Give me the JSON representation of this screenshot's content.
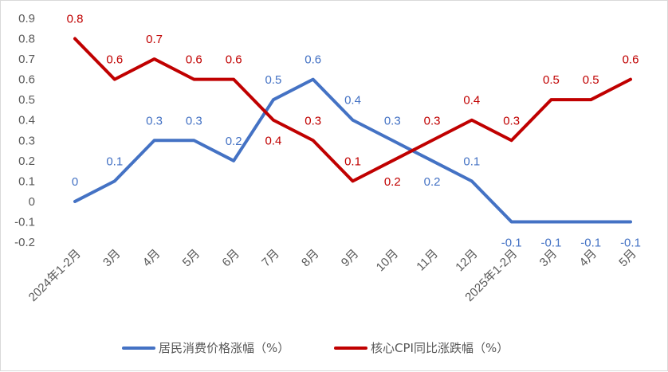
{
  "chart_data": {
    "type": "line",
    "title": "",
    "xlabel": "",
    "ylabel": "",
    "ylim": [
      -0.2,
      0.9
    ],
    "yticks": [
      "0.9",
      "0.8",
      "0.7",
      "0.6",
      "0.5",
      "0.4",
      "0.3",
      "0.2",
      "0.1",
      "0",
      "-0.1",
      "-0.2"
    ],
    "grid": false,
    "legend_position": "bottom",
    "categories": [
      "2024年1-2月",
      "3月",
      "4月",
      "5月",
      "6月",
      "7月",
      "8月",
      "9月",
      "10月",
      "11月",
      "12月",
      "2025年1-2月",
      "3月",
      "4月",
      "5月"
    ],
    "series": [
      {
        "name": "居民消费价格涨幅（%）",
        "color": "#4472C4",
        "values": [
          0,
          0.1,
          0.3,
          0.3,
          0.2,
          0.5,
          0.6,
          0.4,
          0.3,
          0.2,
          0.1,
          -0.1,
          -0.1,
          -0.1,
          -0.1
        ]
      },
      {
        "name": "核心CPI同比涨跌幅（%）",
        "color": "#C00000",
        "values": [
          0.8,
          0.6,
          0.7,
          0.6,
          0.6,
          0.4,
          0.3,
          0.1,
          0.2,
          0.3,
          0.4,
          0.3,
          0.5,
          0.5,
          0.6
        ]
      }
    ]
  }
}
